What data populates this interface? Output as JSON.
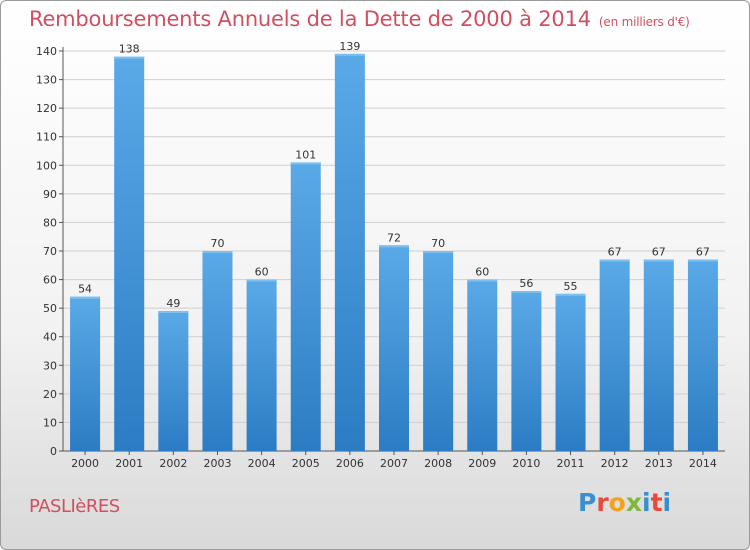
{
  "header": {
    "title": "Remboursements Annuels de la Dette de 2000 à 2014",
    "unit": "(en milliers d'€)"
  },
  "footer": {
    "town": "PASLIèRES",
    "logo_text": "Proxiti"
  },
  "colors": {
    "bar": "#3f8fd6",
    "bar_light": "#5aaae8",
    "title": "#d14f60",
    "grid": "#cfcfcf"
  },
  "chart_data": {
    "type": "bar",
    "title": "Remboursements Annuels de la Dette de 2000 à 2014",
    "subtitle": "(en milliers d'€)",
    "categories": [
      "2000",
      "2001",
      "2002",
      "2003",
      "2004",
      "2005",
      "2006",
      "2007",
      "2008",
      "2009",
      "2010",
      "2011",
      "2012",
      "2013",
      "2014"
    ],
    "values": [
      54,
      138,
      49,
      70,
      60,
      101,
      139,
      72,
      70,
      60,
      56,
      55,
      67,
      67,
      67
    ],
    "ylim": [
      0,
      140
    ],
    "yticks": [
      0,
      10,
      20,
      30,
      40,
      50,
      60,
      70,
      80,
      90,
      100,
      110,
      120,
      130,
      140
    ],
    "grid": true,
    "legend": "none"
  }
}
